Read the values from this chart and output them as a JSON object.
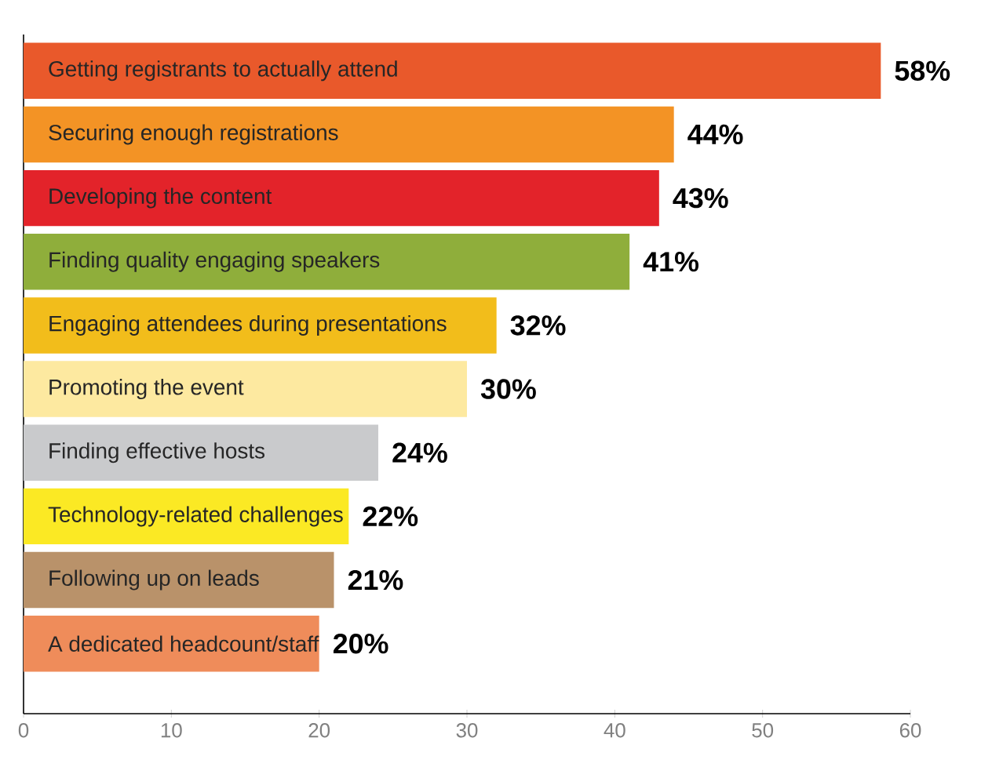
{
  "chart_data": {
    "type": "bar",
    "orientation": "horizontal",
    "categories": [
      "Getting registrants to actually attend",
      "Securing enough registrations",
      "Developing the content",
      "Finding quality engaging speakers",
      "Engaging attendees during presentations",
      "Promoting the event",
      "Finding effective hosts",
      "Technology-related challenges",
      "Following up on leads",
      "A dedicated headcount/staff"
    ],
    "values": [
      58,
      44,
      43,
      41,
      32,
      30,
      24,
      22,
      21,
      20
    ],
    "value_labels": [
      "58%",
      "44%",
      "43%",
      "41%",
      "32%",
      "30%",
      "24%",
      "22%",
      "21%",
      "20%"
    ],
    "colors": [
      "#e9592b",
      "#f39325",
      "#e3232a",
      "#8fae3b",
      "#f2bd1b",
      "#fde9a0",
      "#c9cacc",
      "#fbe924",
      "#b9926a",
      "#ef8c5a"
    ],
    "xlim": [
      0,
      60
    ],
    "xticks": [
      0,
      10,
      20,
      30,
      40,
      50,
      60
    ]
  }
}
